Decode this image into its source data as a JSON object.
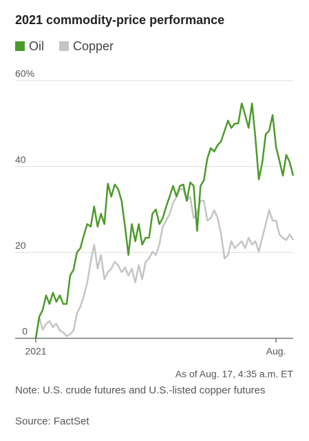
{
  "chart_data": {
    "type": "line",
    "title": "2021 commodity-price performance",
    "categories": [
      "2021",
      null,
      null,
      null,
      null,
      null,
      null,
      null,
      null,
      null,
      null,
      null,
      null,
      null,
      null,
      null,
      null,
      null,
      null,
      null,
      null,
      null,
      null,
      null,
      null,
      null,
      null,
      null,
      null,
      null,
      null,
      null,
      null,
      null,
      null,
      null,
      null,
      null,
      null,
      null,
      null,
      null,
      null,
      null,
      null,
      null,
      null,
      null,
      null,
      null,
      null,
      null,
      null,
      null,
      null,
      null,
      null,
      null,
      null,
      null,
      null,
      null,
      null,
      null,
      null,
      null,
      null,
      null,
      null,
      null,
      "Aug.",
      null,
      null,
      null,
      null,
      null
    ],
    "series": [
      {
        "name": "Oil",
        "color": "#4c9a2a",
        "values": [
          0,
          5,
          6.6,
          10,
          8,
          10.6,
          8.5,
          10,
          8,
          8,
          14.6,
          16,
          20,
          21,
          24,
          26.6,
          26,
          30.7,
          26,
          29,
          26.6,
          36,
          33,
          35.8,
          34.7,
          32,
          26,
          19.4,
          26.6,
          22.6,
          26.6,
          21.8,
          23.4,
          23.4,
          29,
          30,
          26.6,
          28,
          30.7,
          33,
          35.5,
          33,
          35.5,
          35.8,
          32,
          36.3,
          35.5,
          25,
          35.5,
          36.8,
          41.9,
          44.3,
          43.5,
          45,
          45.9,
          48.3,
          50.7,
          49,
          50,
          50,
          54.7,
          52,
          49,
          54.7,
          46.7,
          37,
          40.9,
          47.5,
          48.3,
          52,
          44.6,
          41.3,
          37.9,
          42.7,
          41,
          37.9
        ]
      },
      {
        "name": "Copper",
        "color": "#c4c4c4",
        "values": [
          0,
          5,
          2,
          3.4,
          4,
          2.6,
          3.4,
          1.8,
          1.4,
          0.5,
          1,
          1.8,
          5.8,
          7.4,
          9.8,
          13,
          17.8,
          21.8,
          16.2,
          19.4,
          13.8,
          15.4,
          16.2,
          17.8,
          17,
          15.4,
          16.5,
          14.6,
          16.2,
          13,
          17,
          13.8,
          17.8,
          18.6,
          20.2,
          19.4,
          21.8,
          26,
          27.4,
          29,
          31.5,
          33,
          34.7,
          34.7,
          32,
          33,
          28,
          29,
          32,
          32,
          27.4,
          28,
          29.8,
          28,
          24.2,
          18.6,
          19.4,
          22.6,
          21,
          21.8,
          22.6,
          21,
          23.4,
          21.8,
          22.6,
          20.2,
          23.4,
          26.6,
          29.8,
          27.4,
          27.4,
          24.2,
          23.4,
          22.9,
          24.2,
          22.9
        ]
      }
    ],
    "ylim": [
      0,
      60
    ],
    "yticks": [
      0,
      20,
      40,
      {
        "value": 60,
        "label": "60%"
      }
    ],
    "grid": true,
    "annotation": "As of Aug. 17, 4:35 a.m. ET",
    "note": "Note: U.S. crude futures and U.S.-listed copper futures",
    "source": "Source: FactSet"
  }
}
